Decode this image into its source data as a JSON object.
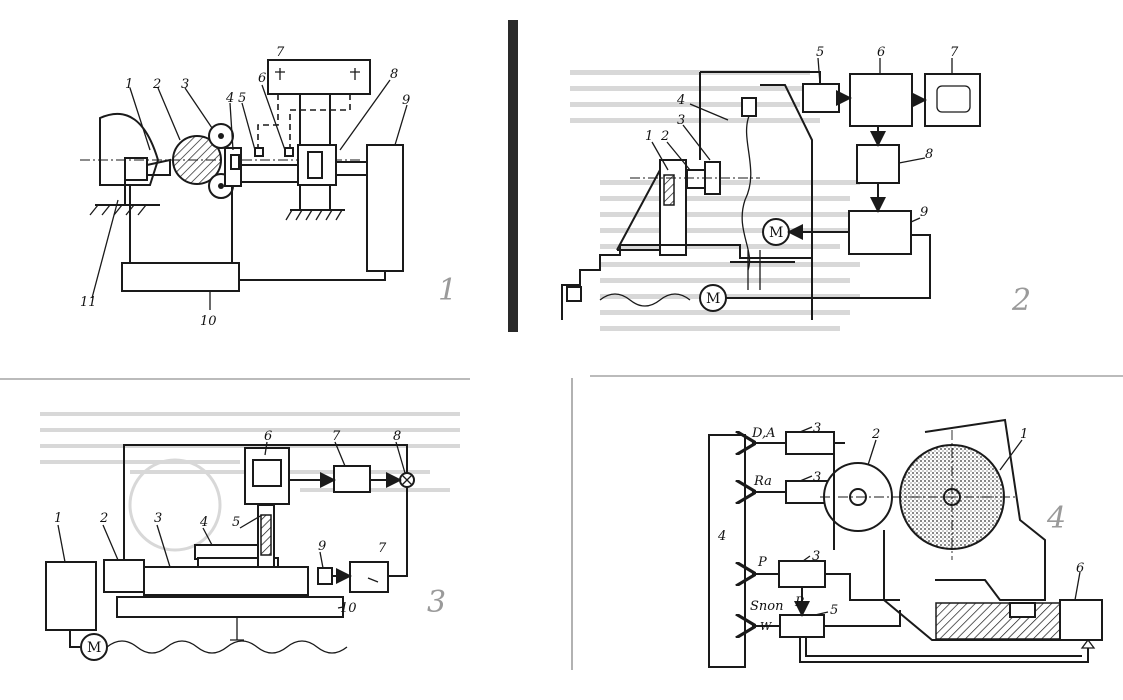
{
  "panel1": {
    "labels": [
      "1",
      "2",
      "3",
      "4",
      "5",
      "6",
      "7",
      "8",
      "9",
      "10",
      "11"
    ],
    "page_number": "1"
  },
  "panel2": {
    "labels": [
      "1",
      "2",
      "3",
      "4",
      "5",
      "6",
      "7",
      "8",
      "9"
    ],
    "motor_label": "M",
    "page_number": "2"
  },
  "panel3": {
    "labels": [
      "1",
      "2",
      "3",
      "4",
      "5",
      "6",
      "7",
      "7",
      "8",
      "9",
      "10"
    ],
    "motor_label": "M",
    "page_number": "3"
  },
  "panel4": {
    "labels": [
      "1",
      "2",
      "3",
      "3",
      "3",
      "4",
      "5",
      "6"
    ],
    "signal_da": "D,A",
    "signal_ra": "Ra",
    "signal_p1": "P",
    "signal_p2": "P",
    "signal_spop": "Sпоп",
    "signal_w": "W",
    "page_number": "4"
  }
}
